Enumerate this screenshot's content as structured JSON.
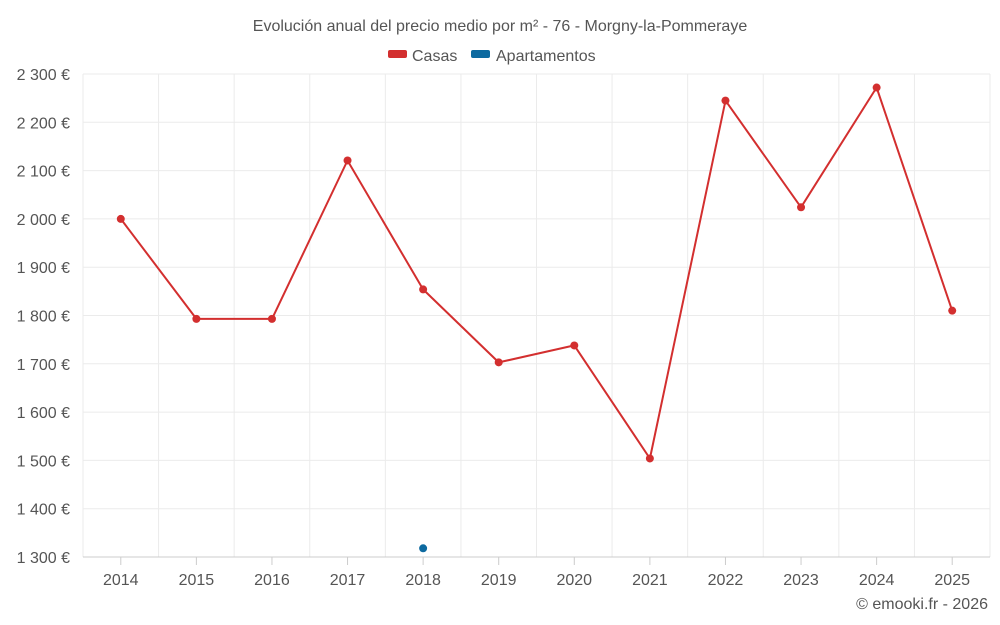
{
  "chart_data": {
    "type": "line",
    "title": "Evolución anual del precio medio por m² - 76 - Morgny-la-Pommeraye",
    "xlabel": "",
    "ylabel": "",
    "categories": [
      "2014",
      "2015",
      "2016",
      "2017",
      "2018",
      "2019",
      "2020",
      "2021",
      "2022",
      "2023",
      "2024",
      "2025"
    ],
    "ylim": [
      1300,
      2300
    ],
    "yticks": [
      1300,
      1400,
      1500,
      1600,
      1700,
      1800,
      1900,
      2000,
      2100,
      2200,
      2300
    ],
    "ytick_labels": [
      "1 300 €",
      "1 400 €",
      "1 500 €",
      "1 600 €",
      "1 700 €",
      "1 800 €",
      "1 900 €",
      "2 000 €",
      "2 100 €",
      "2 200 €",
      "2 300 €"
    ],
    "grid": true,
    "legend_position": "top-center",
    "series": [
      {
        "name": "Casas",
        "color": "#d32f2f",
        "values": [
          2000,
          1793,
          1793,
          2121,
          1854,
          1703,
          1738,
          1504,
          2245,
          2024,
          2272,
          1810
        ]
      },
      {
        "name": "Apartamentos",
        "color": "#0d6aa0",
        "values": [
          null,
          null,
          null,
          null,
          1318,
          null,
          null,
          null,
          null,
          null,
          null,
          null
        ]
      }
    ],
    "credit": "© emooki.fr - 2026"
  }
}
